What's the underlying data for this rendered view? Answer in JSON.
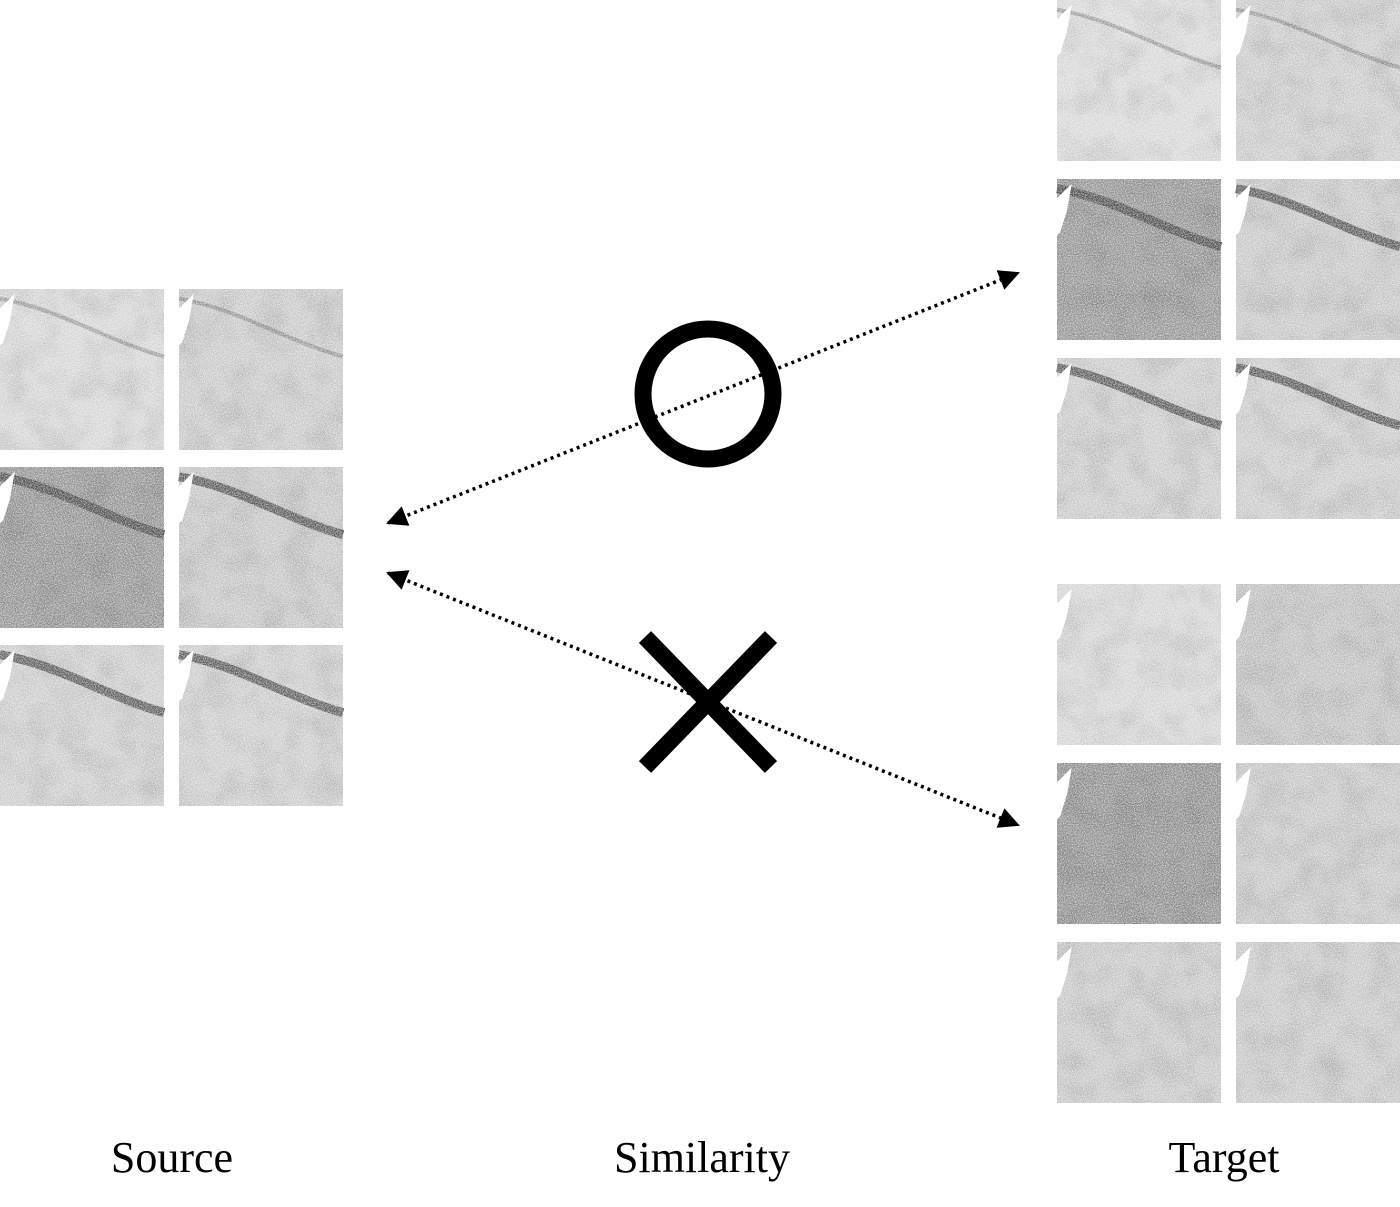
{
  "labels": {
    "source": "Source",
    "similarity": "Similarity",
    "target": "Target"
  },
  "marks": {
    "similar": "circle-icon",
    "dissimilar": "cross-icon"
  },
  "colors": {
    "ink": "#000000",
    "background": "#ffffff"
  },
  "panels": {
    "source": [
      {
        "tone": "#d3d3d3",
        "band": "faint"
      },
      {
        "tone": "#c6c6c6",
        "band": "faint"
      },
      {
        "tone": "#8e8e8e",
        "band": "strong"
      },
      {
        "tone": "#c2c2c2",
        "band": "strong"
      },
      {
        "tone": "#c9c9c9",
        "band": "strong"
      },
      {
        "tone": "#c9c9c9",
        "band": "strong"
      }
    ],
    "target_similar": [
      {
        "tone": "#d6d6d6",
        "band": "faint"
      },
      {
        "tone": "#c8c8c8",
        "band": "faint"
      },
      {
        "tone": "#8f8f8f",
        "band": "strong"
      },
      {
        "tone": "#c4c4c4",
        "band": "strong"
      },
      {
        "tone": "#c8c8c8",
        "band": "strong"
      },
      {
        "tone": "#c8c8c8",
        "band": "strong"
      }
    ],
    "target_dissimilar": [
      {
        "tone": "#d2d2d2",
        "band": "none"
      },
      {
        "tone": "#bdbdbd",
        "band": "none"
      },
      {
        "tone": "#8a8a8a",
        "band": "none"
      },
      {
        "tone": "#c3c3c3",
        "band": "none"
      },
      {
        "tone": "#c4c4c4",
        "band": "none"
      },
      {
        "tone": "#c4c4c4",
        "band": "none"
      }
    ]
  }
}
